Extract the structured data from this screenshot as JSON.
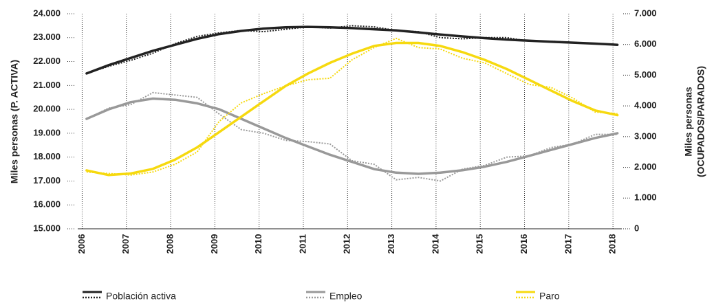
{
  "chart_data": {
    "type": "line",
    "y_label": "Miles personas (P. ACTIVA)",
    "y2_label": [
      "Miles personas",
      "(OCUPADOS/PARADOS)"
    ],
    "x": [
      2006.1,
      2006.6,
      2007.1,
      2007.6,
      2008.1,
      2008.6,
      2009.1,
      2009.6,
      2010.1,
      2010.6,
      2011.1,
      2011.6,
      2012.1,
      2012.6,
      2013.1,
      2013.6,
      2014.1,
      2014.6,
      2015.1,
      2015.6,
      2016.1,
      2016.6,
      2017.1,
      2017.6,
      2018.1
    ],
    "xlim": [
      2005.9,
      2018.2
    ],
    "xticks": [
      2006,
      2007,
      2008,
      2009,
      2010,
      2011,
      2012,
      2013,
      2014,
      2015,
      2016,
      2017,
      2018
    ],
    "ylim": [
      15000,
      24000
    ],
    "yticks": [
      {
        "value": 15000,
        "label": "15.000"
      },
      {
        "value": 16000,
        "label": "16.000"
      },
      {
        "value": 17000,
        "label": "17.000"
      },
      {
        "value": 18000,
        "label": "18.000"
      },
      {
        "value": 19000,
        "label": "19.000"
      },
      {
        "value": 20000,
        "label": "20.000"
      },
      {
        "value": 21000,
        "label": "21.000"
      },
      {
        "value": 22000,
        "label": "22.000"
      },
      {
        "value": 23000,
        "label": "23.000"
      },
      {
        "value": 24000,
        "label": "24.000"
      }
    ],
    "y2lim": [
      0,
      7000
    ],
    "y2ticks": [
      0,
      {
        "value": 1000,
        "label": "1.000"
      },
      {
        "value": 2000,
        "label": "2.000"
      },
      {
        "value": 3000,
        "label": "3.000"
      },
      {
        "value": 4000,
        "label": "4.000"
      },
      {
        "value": 5000,
        "label": "5.000"
      },
      {
        "value": 6000,
        "label": "6.000"
      },
      {
        "value": 7000,
        "label": "7.000"
      }
    ],
    "x_grid": true,
    "series": [
      {
        "name": "Población activa",
        "color": "#222222",
        "axis": "y",
        "trend": [
          21500,
          21850,
          22150,
          22450,
          22700,
          22950,
          23150,
          23280,
          23380,
          23430,
          23450,
          23430,
          23400,
          23350,
          23300,
          23220,
          23130,
          23050,
          22980,
          22920,
          22870,
          22830,
          22790,
          22750,
          22700
        ],
        "values": [
          21500,
          21800,
          22050,
          22350,
          22750,
          23050,
          23200,
          23300,
          23250,
          23350,
          23450,
          23400,
          23500,
          23450,
          23300,
          23250,
          23000,
          22950,
          23000,
          23000,
          22850,
          22850,
          22800,
          22750,
          22700
        ]
      },
      {
        "name": "Empleo",
        "color": "#999999",
        "axis": "y",
        "trend": [
          19600,
          20000,
          20300,
          20450,
          20400,
          20250,
          20000,
          19600,
          19200,
          18800,
          18450,
          18100,
          17800,
          17500,
          17350,
          17300,
          17350,
          17450,
          17600,
          17800,
          18050,
          18300,
          18550,
          18800,
          19000
        ],
        "values": [
          19600,
          20050,
          20200,
          20700,
          20600,
          20500,
          19800,
          19150,
          19000,
          18700,
          18650,
          18550,
          17850,
          17700,
          17050,
          17150,
          17000,
          17500,
          17650,
          18000,
          18050,
          18400,
          18550,
          18950,
          18950
        ]
      },
      {
        "name": "Paro",
        "color": "#f6d90f",
        "axis": "y2",
        "trend": [
          1900,
          1750,
          1800,
          1950,
          2250,
          2650,
          3150,
          3650,
          4150,
          4650,
          5050,
          5400,
          5700,
          5950,
          6050,
          6050,
          5950,
          5750,
          5500,
          5200,
          4850,
          4500,
          4150,
          3850,
          3700
        ],
        "values": [
          1850,
          1800,
          1750,
          1850,
          2100,
          2500,
          3500,
          4100,
          4400,
          4650,
          4850,
          4900,
          5500,
          5900,
          6200,
          5900,
          5850,
          5550,
          5400,
          5050,
          4700,
          4600,
          4250,
          3800,
          3750
        ]
      }
    ]
  }
}
